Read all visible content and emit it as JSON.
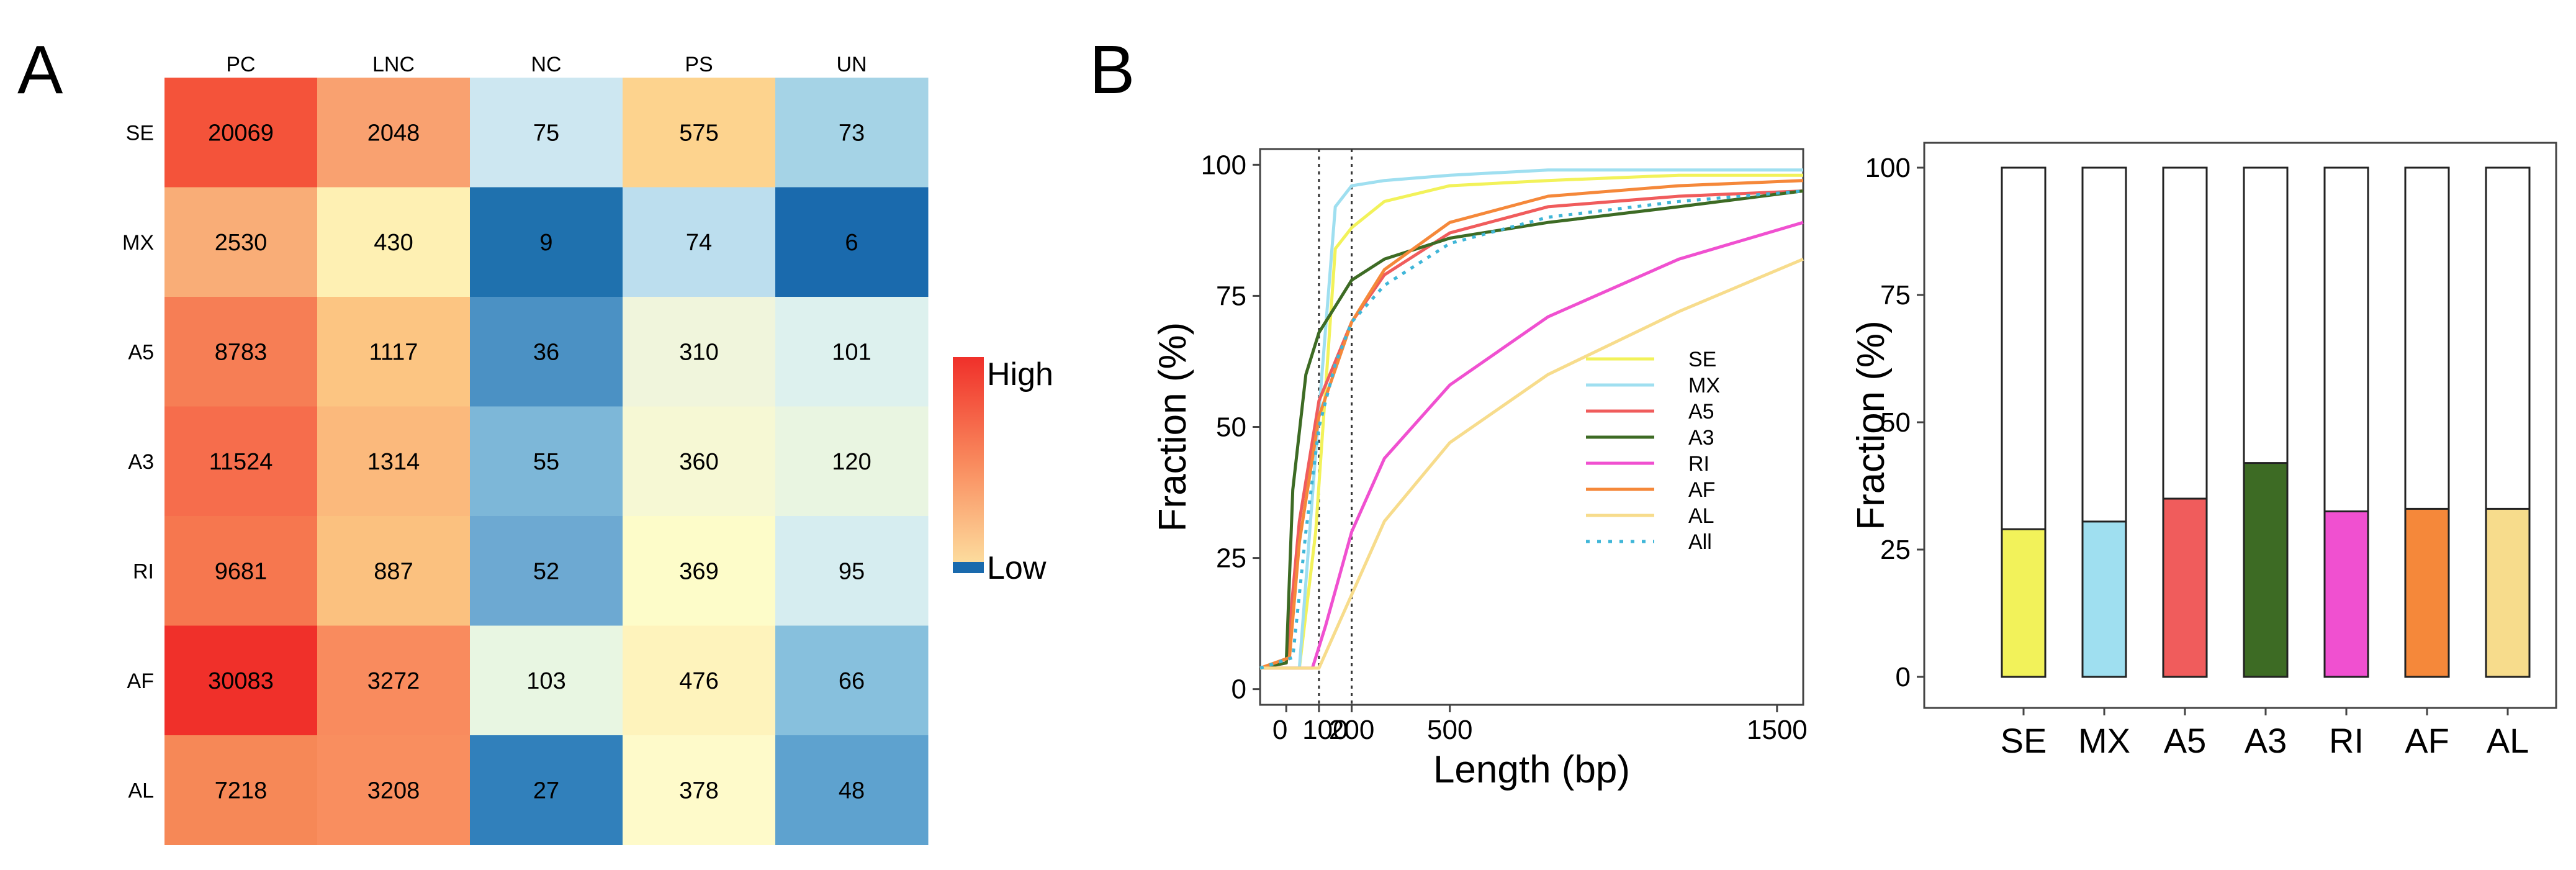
{
  "panels": {
    "a": "A",
    "b": "B"
  },
  "heatmap": {
    "columns": [
      "PC",
      "LNC",
      "NC",
      "PS",
      "UN"
    ],
    "rows": [
      {
        "label": "SE",
        "values": [
          20069,
          2048,
          75,
          575,
          73
        ]
      },
      {
        "label": "MX",
        "values": [
          2530,
          430,
          9,
          74,
          6
        ]
      },
      {
        "label": "A5",
        "values": [
          8783,
          1117,
          36,
          310,
          101
        ]
      },
      {
        "label": "A3",
        "values": [
          11524,
          1314,
          55,
          360,
          120
        ]
      },
      {
        "label": "RI",
        "values": [
          9681,
          887,
          52,
          369,
          95
        ]
      },
      {
        "label": "AF",
        "values": [
          30083,
          3272,
          103,
          476,
          66
        ]
      },
      {
        "label": "AL",
        "values": [
          7218,
          3208,
          27,
          378,
          48
        ]
      }
    ],
    "colors": [
      [
        "#f4533a",
        "#f9a170",
        "#cde7f1",
        "#fdd38e",
        "#a5d3e6"
      ],
      [
        "#f9ad77",
        "#fef0b3",
        "#1f71ae",
        "#bcdeee",
        "#1a6aad"
      ],
      [
        "#f67e55",
        "#fcc582",
        "#4b91c4",
        "#f0f5dc",
        "#ddf1ee"
      ],
      [
        "#f66d4c",
        "#fbb97c",
        "#7db7d8",
        "#f6f8d4",
        "#e9f5e1"
      ],
      [
        "#f6774f",
        "#fbc17f",
        "#6da9d2",
        "#fdfcc9",
        "#d6edf0"
      ],
      [
        "#f0302a",
        "#f98b5e",
        "#e8f6e2",
        "#fef3bc",
        "#87c0dd"
      ],
      [
        "#f68857",
        "#f98e5f",
        "#3180bb",
        "#fefaca",
        "#5ea2cf"
      ]
    ],
    "legend": {
      "high": "High",
      "low": "Low",
      "high_color": "#f0302a",
      "low_color": "#1a6aad"
    }
  },
  "chart_data": [
    {
      "type": "line",
      "title": "",
      "xlabel": "Length  (bp)",
      "ylabel": "Fraction  (%)",
      "xlim": [
        -80,
        1580
      ],
      "ylim": [
        -3,
        103
      ],
      "x_ticks": [
        "0",
        "100",
        "200",
        "500",
        "1500"
      ],
      "x_tick_values": [
        0,
        100,
        200,
        500,
        1500
      ],
      "y_ticks": [
        "0",
        "25",
        "50",
        "75",
        "100"
      ],
      "y_tick_values": [
        0,
        25,
        50,
        75,
        100
      ],
      "vlines": [
        100,
        200
      ],
      "series": [
        {
          "name": "SE",
          "color": "#f2f25a",
          "dash": false,
          "points": [
            [
              -80,
              4
            ],
            [
              40,
              4
            ],
            [
              90,
              30
            ],
            [
              150,
              84
            ],
            [
              200,
              88
            ],
            [
              300,
              93
            ],
            [
              500,
              96
            ],
            [
              800,
              97
            ],
            [
              1200,
              98
            ],
            [
              1580,
              98
            ]
          ]
        },
        {
          "name": "MX",
          "color": "#9fdff0",
          "dash": false,
          "points": [
            [
              -80,
              4
            ],
            [
              40,
              4
            ],
            [
              90,
              45
            ],
            [
              150,
              92
            ],
            [
              200,
              96
            ],
            [
              300,
              97
            ],
            [
              500,
              98
            ],
            [
              800,
              99
            ],
            [
              1200,
              99
            ],
            [
              1580,
              99
            ]
          ]
        },
        {
          "name": "A5",
          "color": "#f05c5c",
          "dash": false,
          "points": [
            [
              -80,
              4
            ],
            [
              0,
              5
            ],
            [
              40,
              32
            ],
            [
              100,
              55
            ],
            [
              200,
              70
            ],
            [
              300,
              79
            ],
            [
              500,
              87
            ],
            [
              800,
              92
            ],
            [
              1200,
              94
            ],
            [
              1580,
              95
            ]
          ]
        },
        {
          "name": "A3",
          "color": "#3d6b24",
          "dash": false,
          "points": [
            [
              -80,
              4
            ],
            [
              0,
              5
            ],
            [
              20,
              38
            ],
            [
              60,
              60
            ],
            [
              100,
              68
            ],
            [
              200,
              78
            ],
            [
              300,
              82
            ],
            [
              500,
              86
            ],
            [
              800,
              89
            ],
            [
              1200,
              92
            ],
            [
              1580,
              95
            ]
          ]
        },
        {
          "name": "RI",
          "color": "#f050d0",
          "dash": false,
          "points": [
            [
              -80,
              4
            ],
            [
              80,
              4
            ],
            [
              120,
              12
            ],
            [
              200,
              30
            ],
            [
              300,
              44
            ],
            [
              500,
              58
            ],
            [
              800,
              71
            ],
            [
              1200,
              82
            ],
            [
              1580,
              89
            ]
          ]
        },
        {
          "name": "AF",
          "color": "#f5883a",
          "dash": false,
          "points": [
            [
              -80,
              4
            ],
            [
              10,
              6
            ],
            [
              40,
              28
            ],
            [
              100,
              52
            ],
            [
              200,
              70
            ],
            [
              300,
              80
            ],
            [
              500,
              89
            ],
            [
              800,
              94
            ],
            [
              1200,
              96
            ],
            [
              1580,
              97
            ]
          ]
        },
        {
          "name": "AL",
          "color": "#f7dc8c",
          "dash": false,
          "points": [
            [
              -80,
              4
            ],
            [
              100,
              4
            ],
            [
              200,
              18
            ],
            [
              300,
              32
            ],
            [
              500,
              47
            ],
            [
              800,
              60
            ],
            [
              1200,
              72
            ],
            [
              1580,
              82
            ]
          ]
        },
        {
          "name": "All",
          "color": "#3fb6d8",
          "dash": true,
          "points": [
            [
              -80,
              4
            ],
            [
              20,
              6
            ],
            [
              60,
              30
            ],
            [
              100,
              50
            ],
            [
              150,
              62
            ],
            [
              200,
              70
            ],
            [
              300,
              77
            ],
            [
              500,
              85
            ],
            [
              800,
              90
            ],
            [
              1200,
              93
            ],
            [
              1580,
              95
            ]
          ]
        }
      ]
    },
    {
      "type": "bar",
      "title": "",
      "xlabel": "",
      "ylabel": "Fraction  (%)",
      "ylim": [
        -2,
        103
      ],
      "y_ticks": [
        "0",
        "25",
        "50",
        "75",
        "100"
      ],
      "y_tick_values": [
        0,
        25,
        50,
        75,
        100
      ],
      "categories": [
        "SE",
        "MX",
        "A5",
        "A3",
        "RI",
        "AF",
        "AL"
      ],
      "values": [
        29,
        30.5,
        35,
        42,
        32.5,
        33,
        33
      ],
      "total": 100,
      "colors": [
        "#f2f25a",
        "#9fdff0",
        "#f05c5c",
        "#3d6b24",
        "#f050d0",
        "#f5883a",
        "#f7dc8c"
      ]
    }
  ]
}
